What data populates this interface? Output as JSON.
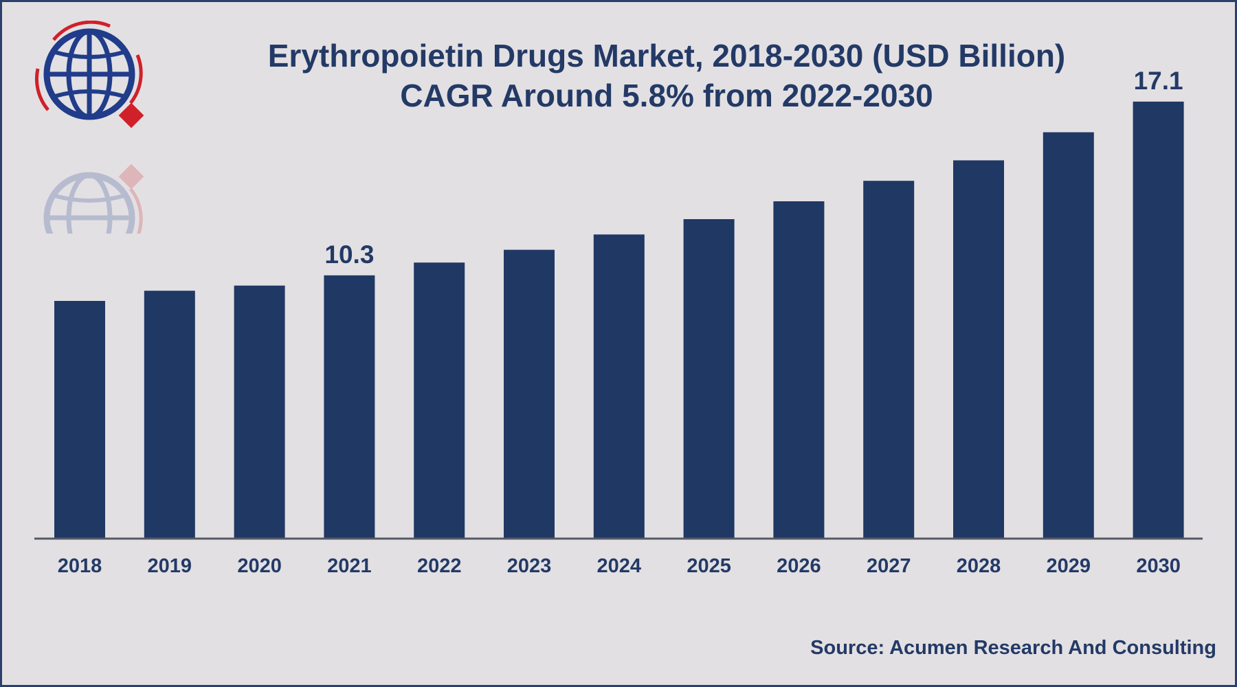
{
  "title_line1": "Erythropoietin Drugs Market, 2018-2030 (USD Billion)",
  "title_line2": "CAGR Around 5.8% from 2022-2030",
  "source": "Source: Acumen Research And Consulting",
  "colors": {
    "bar": "#203864",
    "text": "#233a66",
    "background": "#e3e0e3",
    "logo_blue": "#203c8a",
    "logo_red": "#d0202a"
  },
  "icons": [
    "globe-logo-icon"
  ],
  "chart_data": {
    "type": "bar",
    "categories": [
      "2018",
      "2019",
      "2020",
      "2021",
      "2022",
      "2023",
      "2024",
      "2025",
      "2026",
      "2027",
      "2028",
      "2029",
      "2030"
    ],
    "values": [
      9.3,
      9.7,
      9.9,
      10.3,
      10.8,
      11.3,
      11.9,
      12.5,
      13.2,
      14.0,
      14.8,
      15.9,
      17.1
    ],
    "data_labels": {
      "3": "10.3",
      "12": "17.1"
    },
    "ylim": [
      0,
      20
    ],
    "grid": false,
    "legend": "none"
  }
}
